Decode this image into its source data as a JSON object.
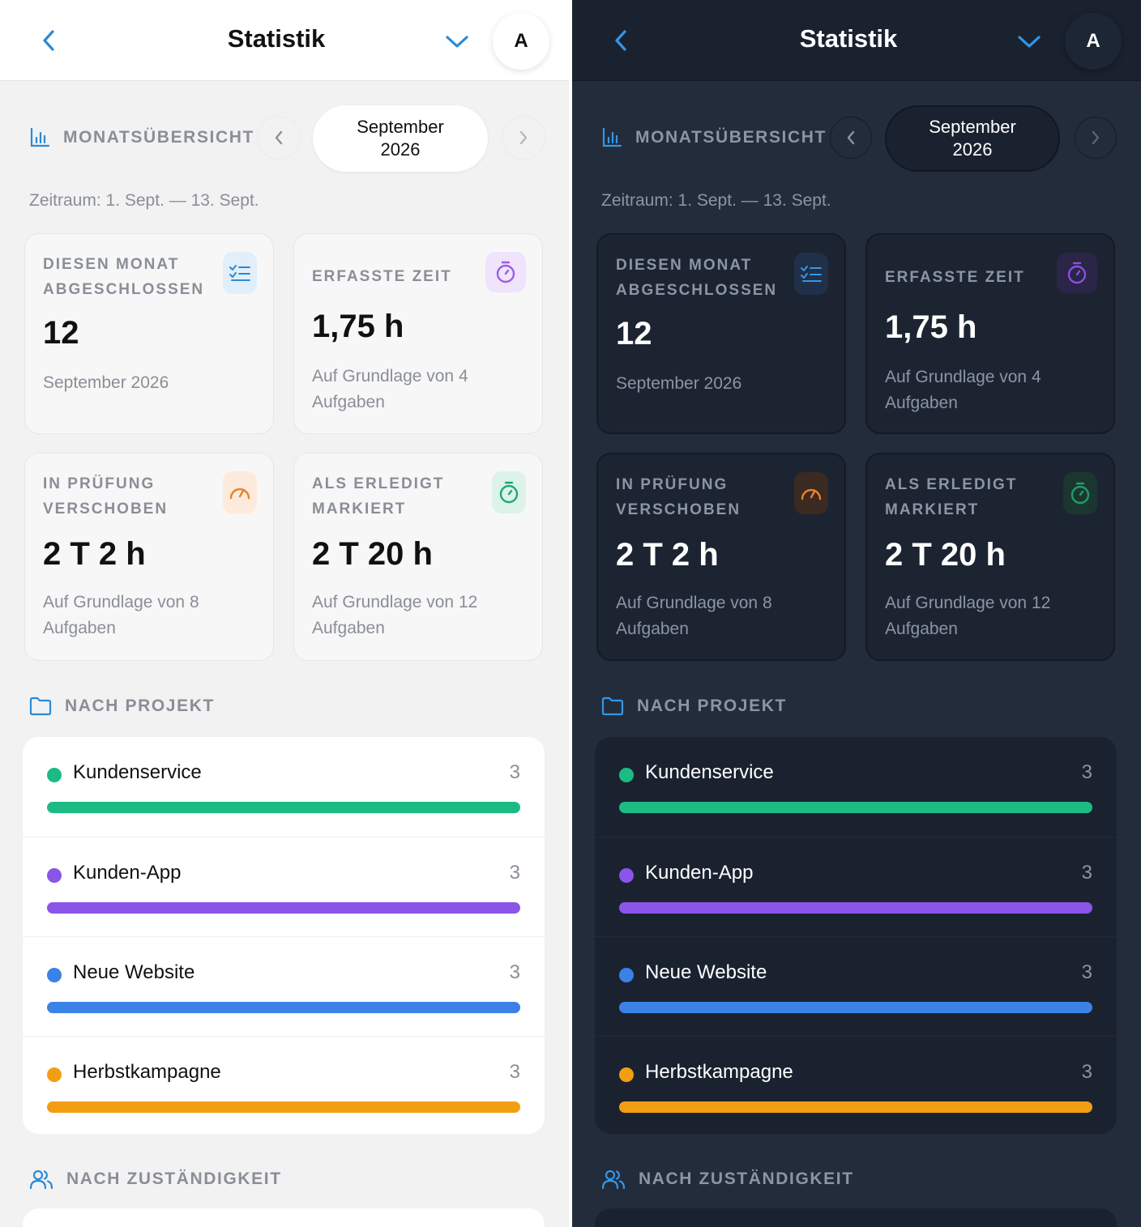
{
  "colors": {
    "accent": "#2b8ad6",
    "green": "#1dbb84",
    "purple": "#8a55e8",
    "blue": "#3b82e6",
    "orange": "#f29e13",
    "timer_purple": "#9b5de5",
    "gauge_orange": "#e8822a",
    "check_green": "#22a870"
  },
  "panels": [
    {
      "theme": "light",
      "header": {
        "title": "Statistik",
        "avatar": "A"
      },
      "month": {
        "section_label": "MONATSÜBERSICHT",
        "line1": "September",
        "line2": "2026"
      },
      "range": "Zeitraum: 1. Sept. — 13. Sept.",
      "cards": [
        {
          "label": "DIESEN MONAT ABGESCHLOSSEN",
          "value": "12",
          "sub": "September 2026",
          "icon": "checklist-icon"
        },
        {
          "label": "ERFASSTE ZEIT",
          "value": "1,75 h",
          "sub": "Auf Grundlage von 4 Aufgaben",
          "icon": "timer-icon"
        },
        {
          "label": "IN PRÜFUNG VERSCHOBEN",
          "value": "2 T 2 h",
          "sub": "Auf Grundlage von 8 Aufgaben",
          "icon": "gauge-icon"
        },
        {
          "label": "ALS ERLEDIGT MARKIERT",
          "value": "2 T 20 h",
          "sub": "Auf Grundlage von 12 Aufgaben",
          "icon": "timer-check-icon"
        }
      ],
      "projects_label": "NACH PROJEKT",
      "projects": [
        {
          "name": "Kundenservice",
          "count": "3",
          "fraction": 1.0
        },
        {
          "name": "Kunden-App",
          "count": "3",
          "fraction": 1.0
        },
        {
          "name": "Neue Website",
          "count": "3",
          "fraction": 1.0
        },
        {
          "name": "Herbstkampagne",
          "count": "3",
          "fraction": 1.0
        }
      ],
      "responsibility_label": "NACH ZUSTÄNDIGKEIT"
    },
    {
      "theme": "dark",
      "header": {
        "title": "Statistik",
        "avatar": "A"
      },
      "month": {
        "section_label": "MONATSÜBERSICHT",
        "line1": "September",
        "line2": "2026"
      },
      "range": "Zeitraum: 1. Sept. — 13. Sept.",
      "cards": [
        {
          "label": "DIESEN MONAT ABGESCHLOSSEN",
          "value": "12",
          "sub": "September 2026",
          "icon": "checklist-icon"
        },
        {
          "label": "ERFASSTE ZEIT",
          "value": "1,75 h",
          "sub": "Auf Grundlage von 4 Aufgaben",
          "icon": "timer-icon"
        },
        {
          "label": "IN PRÜFUNG VERSCHOBEN",
          "value": "2 T 2 h",
          "sub": "Auf Grundlage von 8 Aufgaben",
          "icon": "gauge-icon"
        },
        {
          "label": "ALS ERLEDIGT MARKIERT",
          "value": "2 T 20 h",
          "sub": "Auf Grundlage von 12 Aufgaben",
          "icon": "timer-check-icon"
        }
      ],
      "projects_label": "NACH PROJEKT",
      "projects": [
        {
          "name": "Kundenservice",
          "count": "3",
          "fraction": 1.0
        },
        {
          "name": "Kunden-App",
          "count": "3",
          "fraction": 1.0
        },
        {
          "name": "Neue Website",
          "count": "3",
          "fraction": 1.0
        },
        {
          "name": "Herbstkampagne",
          "count": "3",
          "fraction": 1.0
        }
      ],
      "responsibility_label": "NACH ZUSTÄNDIGKEIT"
    }
  ]
}
